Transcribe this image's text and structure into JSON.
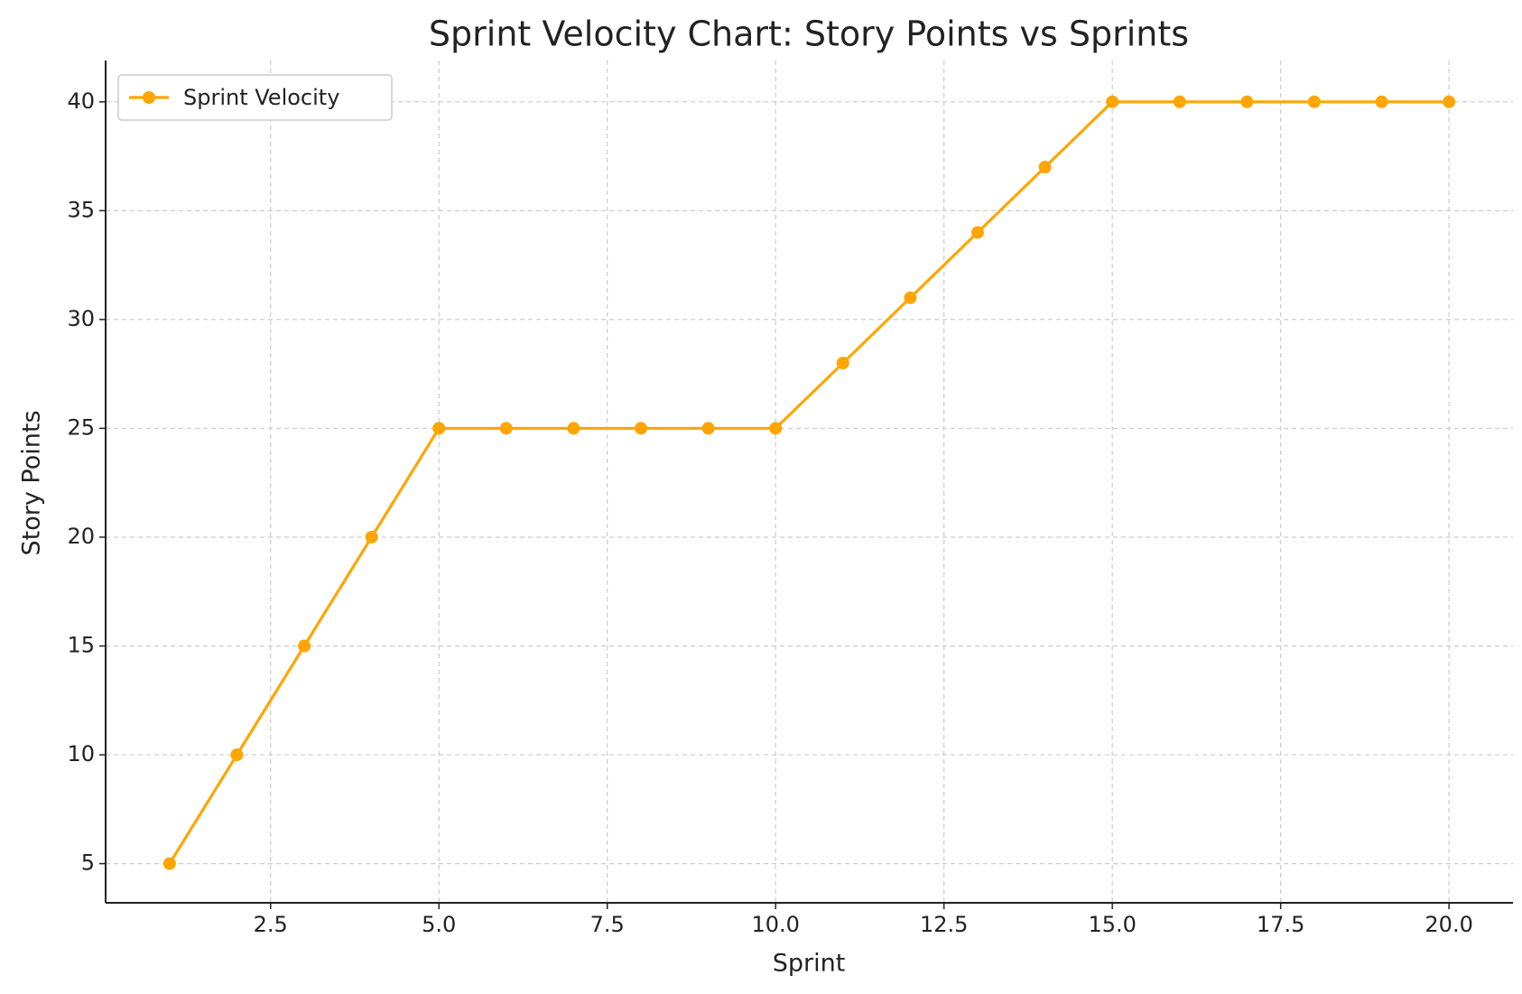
{
  "chart_data": {
    "type": "line",
    "title": "Sprint Velocity Chart: Story Points vs Sprints",
    "x_label": "Sprint",
    "y_label": "Story Points",
    "x": [
      1,
      2,
      3,
      4,
      5,
      6,
      7,
      8,
      9,
      10,
      11,
      12,
      13,
      14,
      15,
      16,
      17,
      18,
      19,
      20
    ],
    "series": [
      {
        "name": "Sprint Velocity",
        "color": "#ffa500",
        "values": [
          5,
          10,
          15,
          20,
          25,
          25,
          25,
          25,
          25,
          25,
          28,
          31,
          34,
          37,
          40,
          40,
          40,
          40,
          40,
          40
        ]
      }
    ],
    "xlim": [
      0.05,
      20.95
    ],
    "ylim": [
      3.2,
      41.9
    ],
    "xticks": [
      {
        "value": 2.5,
        "label": "2.5"
      },
      {
        "value": 5,
        "label": "5.0"
      },
      {
        "value": 7.5,
        "label": "7.5"
      },
      {
        "value": 10,
        "label": "10.0"
      },
      {
        "value": 12.5,
        "label": "12.5"
      },
      {
        "value": 15,
        "label": "15.0"
      },
      {
        "value": 17.5,
        "label": "17.5"
      },
      {
        "value": 20,
        "label": "20.0"
      }
    ],
    "yticks": [
      5,
      10,
      15,
      20,
      25,
      30,
      35,
      40
    ],
    "grid": true,
    "legend": "upper-left"
  }
}
